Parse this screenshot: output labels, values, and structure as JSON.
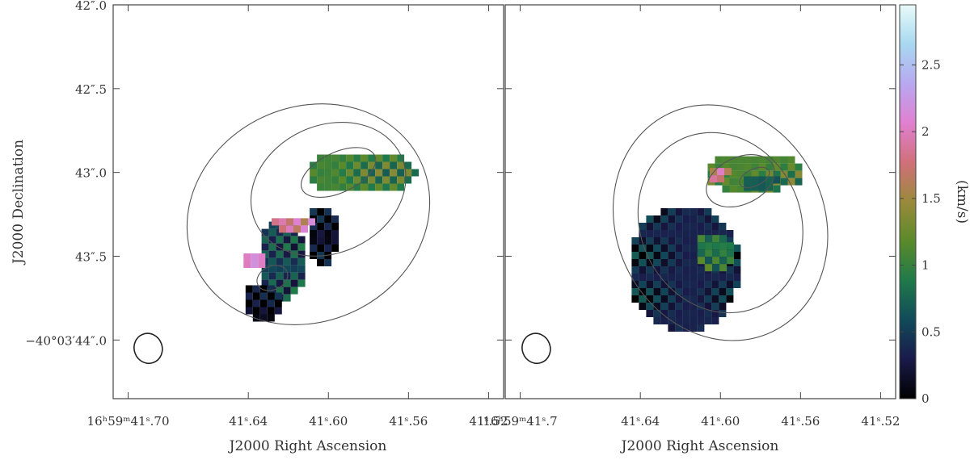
{
  "chart_data": {
    "type": "heatmap",
    "title": "",
    "colorbar": {
      "label": "(km/s)",
      "min": 0,
      "max": 2.95,
      "ticks": [
        0,
        0.5,
        1,
        1.5,
        2,
        2.5
      ],
      "tick_labels": [
        "0",
        "0.5",
        "1",
        "1.5",
        "2",
        "2.5"
      ],
      "colormap": [
        "#000000",
        "#1a1a4a",
        "#114a5a",
        "#1f7a4a",
        "#5a8a2a",
        "#9a8a3a",
        "#d0707a",
        "#e080d0",
        "#b8a8f0",
        "#a8d8f0",
        "#e8fbf8"
      ]
    },
    "y_axis": {
      "label": "J2000 Declination",
      "range_arcsec_offset": [
        42.0,
        44.35
      ],
      "ticks": [
        42.0,
        42.5,
        43.0,
        43.5,
        44.0
      ],
      "tick_labels": [
        "42″.0",
        "42″.5",
        "43″.0",
        "43″.5",
        "−40°03′44″.0"
      ]
    },
    "panels": [
      {
        "name": "left",
        "x_axis": {
          "label": "J2000 Right Ascension",
          "range_s": [
            41.7075,
            41.5125
          ],
          "ticks": [
            41.7,
            41.64,
            41.6,
            41.56,
            41.52
          ],
          "tick_labels": [
            "16ʰ59ᵐ41ˢ.70",
            "41ˢ.64",
            "41ˢ.60",
            "41ˢ.56",
            "41ˢ.52"
          ]
        },
        "blobs": [
          {
            "ra": 41.585,
            "dec": 42.98,
            "rx": 0.028,
            "ry": 0.13,
            "value": 1.05
          },
          {
            "ra": 41.605,
            "dec": 43.35,
            "rx": 0.008,
            "ry": 0.18,
            "value": 0.15
          },
          {
            "ra": 41.625,
            "dec": 43.5,
            "rx": 0.012,
            "ry": 0.25,
            "value": 0.55
          },
          {
            "ra": 41.62,
            "dec": 43.28,
            "rx": 0.012,
            "ry": 0.05,
            "value": 1.85
          },
          {
            "ra": 41.64,
            "dec": 43.5,
            "rx": 0.006,
            "ry": 0.06,
            "value": 2.1
          },
          {
            "ra": 41.635,
            "dec": 43.75,
            "rx": 0.01,
            "ry": 0.12,
            "value": 0.1
          }
        ],
        "contours": [
          {
            "ra": 41.595,
            "dec": 43.0,
            "rx": 0.02,
            "ry": 0.12
          },
          {
            "ra": 41.6,
            "dec": 43.1,
            "rx": 0.04,
            "ry": 0.38
          },
          {
            "ra": 41.61,
            "dec": 43.25,
            "rx": 0.062,
            "ry": 0.64
          },
          {
            "ra": 41.628,
            "dec": 43.63,
            "rx": 0.008,
            "ry": 0.07
          }
        ],
        "beam": {
          "ra": 41.69,
          "dec": 44.05,
          "rx": 0.007,
          "ry": 0.09,
          "angle": -20
        }
      },
      {
        "name": "right",
        "x_axis": {
          "label": "J2000 Right Ascension",
          "range_s": [
            41.7075,
            41.5125
          ],
          "ticks": [
            41.7,
            41.64,
            41.6,
            41.56,
            41.52
          ],
          "tick_labels": [
            "16ʰ59ᵐ41ˢ.7",
            "41ˢ.64",
            "41ˢ.60",
            "41ˢ.56",
            "41ˢ.52"
          ]
        },
        "blobs": [
          {
            "ra": 41.585,
            "dec": 42.98,
            "rx": 0.025,
            "ry": 0.12,
            "value": 1.1
          },
          {
            "ra": 41.582,
            "dec": 43.03,
            "rx": 0.01,
            "ry": 0.05,
            "value": 0.7
          },
          {
            "ra": 41.62,
            "dec": 43.55,
            "rx": 0.028,
            "ry": 0.38,
            "value": 0.35
          },
          {
            "ra": 41.605,
            "dec": 43.45,
            "rx": 0.01,
            "ry": 0.12,
            "value": 0.9
          },
          {
            "ra": 41.603,
            "dec": 42.98,
            "rx": 0.006,
            "ry": 0.05,
            "value": 1.8
          }
        ],
        "contours": [
          {
            "ra": 41.583,
            "dec": 43.03,
            "rx": 0.008,
            "ry": 0.05
          },
          {
            "ra": 41.59,
            "dec": 43.05,
            "rx": 0.018,
            "ry": 0.14
          },
          {
            "ra": 41.6,
            "dec": 43.3,
            "rx": 0.04,
            "ry": 0.55
          },
          {
            "ra": 41.6,
            "dec": 43.3,
            "rx": 0.052,
            "ry": 0.72
          }
        ],
        "beam": {
          "ra": 41.692,
          "dec": 44.05,
          "rx": 0.007,
          "ry": 0.09,
          "angle": -20
        }
      }
    ]
  }
}
